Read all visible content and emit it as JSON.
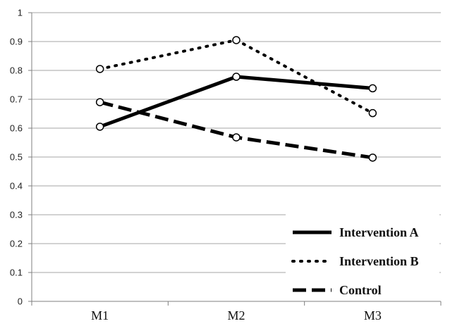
{
  "chart_data": {
    "type": "line",
    "title": "",
    "xlabel": "",
    "ylabel": "",
    "categories": [
      "M1",
      "M2",
      "M3"
    ],
    "ylim": [
      0,
      1
    ],
    "yticks": [
      0,
      0.1,
      0.2,
      0.3,
      0.4,
      0.5,
      0.6,
      0.7,
      0.8,
      0.9,
      1
    ],
    "ytick_labels": [
      "0",
      "0.1",
      "0.2",
      "0.3",
      "0.4",
      "0.5",
      "0.6",
      "0.7",
      "0.8",
      "0.9",
      "1"
    ],
    "grid": true,
    "legend_position": "bottom-right",
    "series": [
      {
        "name": "Intervention  A",
        "values": [
          0.605,
          0.778,
          0.738
        ],
        "line_style": "solid",
        "color": "#000000"
      },
      {
        "name": "Intervention  B",
        "values": [
          0.805,
          0.905,
          0.652
        ],
        "line_style": "dotted",
        "color": "#000000"
      },
      {
        "name": "Control",
        "values": [
          0.69,
          0.568,
          0.498
        ],
        "line_style": "dashed",
        "color": "#000000"
      }
    ],
    "colors": {
      "grid": "#a6a6a6",
      "axis": "#7f7f7f",
      "line": "#000000",
      "marker_fill": "#ffffff",
      "marker_stroke": "#000000"
    }
  }
}
